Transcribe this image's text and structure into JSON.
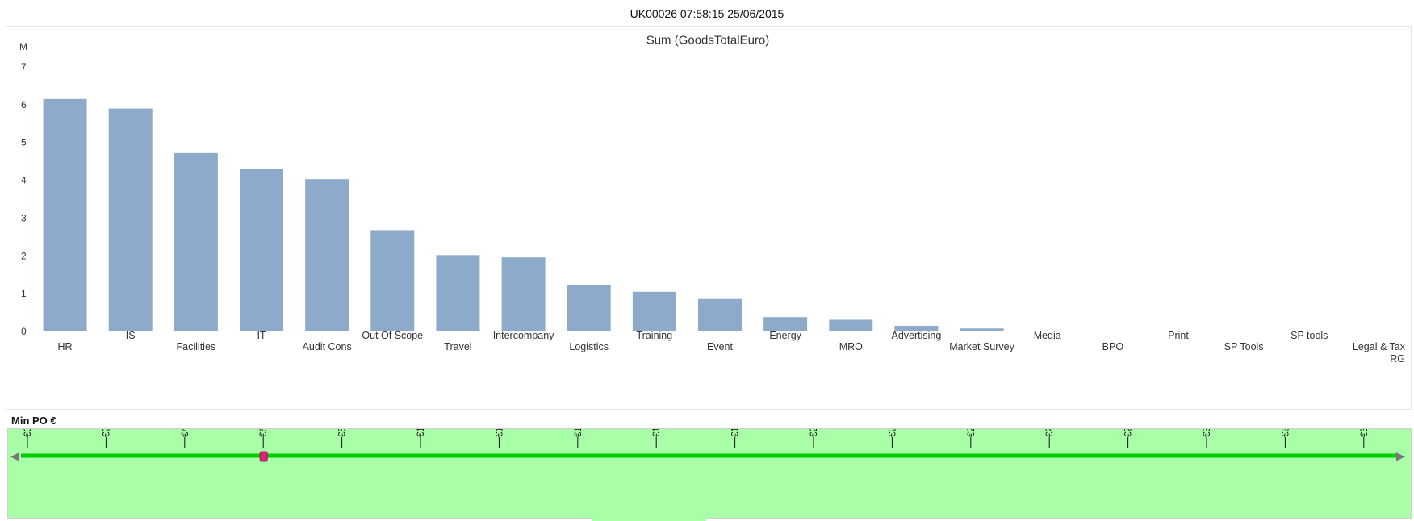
{
  "header": {
    "timestamp": "UK00026 07:58:15 25/06/2015"
  },
  "chart_data": {
    "type": "bar",
    "title": "Sum (GoodsTotalEuro)",
    "yunit": "M",
    "ylim": [
      0,
      7
    ],
    "yticks": [
      "0",
      "1",
      "2",
      "3",
      "4",
      "5",
      "6",
      "7"
    ],
    "categories": [
      "HR",
      "IS",
      "Facilities",
      "IT",
      "Audit Cons",
      "Out Of Scope",
      "Travel",
      "Intercompany",
      "Logistics",
      "Training",
      "Event",
      "Energy",
      "MRO",
      "Advertising",
      "Market Survey",
      "Media",
      "BPO",
      "Print",
      "SP Tools",
      "SP tools",
      "Legal & Tax RG"
    ],
    "values": [
      6.15,
      5.9,
      4.72,
      4.3,
      4.03,
      2.68,
      2.02,
      1.96,
      1.24,
      1.05,
      0.86,
      0.38,
      0.31,
      0.15,
      0.08,
      0.02,
      0.02,
      0.02,
      0.02,
      0.02,
      0.02
    ],
    "bar_color": "#8eaacb",
    "legend": "none",
    "grid": false
  },
  "slider": {
    "label": "Min PO €",
    "ticks": [
      "€0",
      "€200,000",
      "€400,000",
      "€600,000",
      "€800,000",
      "€1,000,000",
      "€1,200,000",
      "€1,400,000",
      "€1,600,000",
      "€1,800,000",
      "€2,000,000",
      "€2,200,000",
      "€2,400,000",
      "€2,600,000",
      "€2,800,000",
      "€3,000,000",
      "€3,200,000",
      "€3,400,000"
    ],
    "min": 0,
    "max": 3400000,
    "value": 600000,
    "track_color": "#00cc00",
    "handle_color": "#e0207a",
    "arrow_left": "◀",
    "arrow_right": "▶"
  }
}
